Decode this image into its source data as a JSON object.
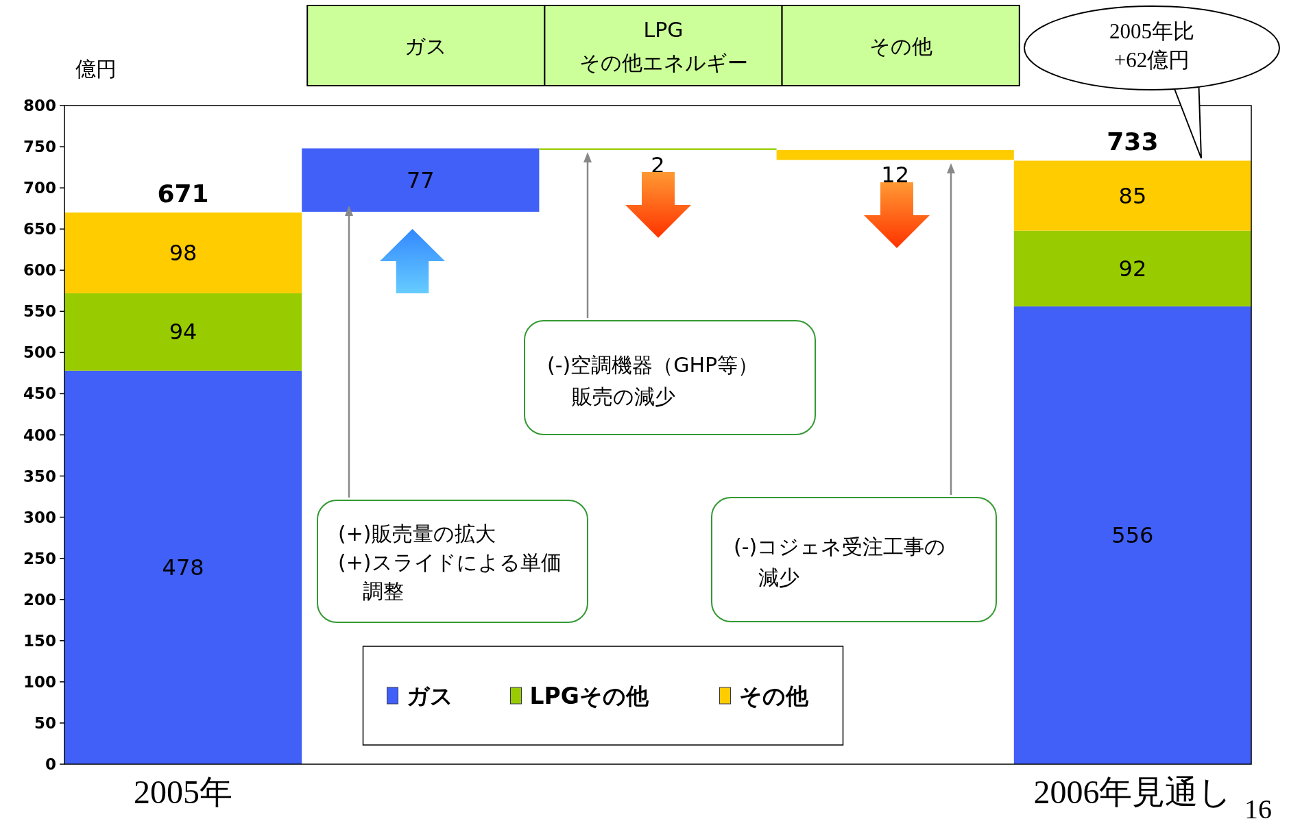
{
  "chart_data": {
    "type": "bar",
    "ylabel": "億円",
    "stacked": true,
    "legend": "bottom",
    "categories": [
      "2005年",
      "ガス",
      "LPG\nその他エネルギー",
      "その他",
      "2006年見通し"
    ],
    "series": [
      {
        "name": "ガス",
        "color": "#4060f8",
        "values": [
          478,
          77,
          null,
          null,
          556
        ],
        "base": [
          null,
          671,
          null,
          null,
          null
        ],
        "value_labels": [
          "478",
          "77",
          null,
          null,
          "556"
        ]
      },
      {
        "name": "LPGその他",
        "color": "#99cc00",
        "values": [
          94,
          null,
          -2,
          null,
          92
        ],
        "base": [
          null,
          null,
          748,
          null,
          null
        ],
        "value_labels": [
          "94",
          null,
          "2",
          null,
          "92"
        ]
      },
      {
        "name": "その他",
        "color": "#ffcc00",
        "values": [
          98,
          null,
          null,
          -12,
          85
        ],
        "base": [
          null,
          null,
          null,
          746,
          null
        ],
        "value_labels": [
          "98",
          null,
          null,
          "12",
          "85"
        ]
      }
    ],
    "totals": [
      "671",
      null,
      null,
      null,
      "733"
    ],
    "ylim": [
      0,
      800
    ],
    "yticks": [
      0,
      50,
      100,
      150,
      200,
      250,
      300,
      350,
      400,
      450,
      500,
      550,
      600,
      650,
      700,
      750,
      800
    ],
    "annotations": [
      "(+)販売量の拡大",
      "(+)スライドによる単価調整",
      "(-)空調機器（GHP等）販売の減少",
      "(-)コジェネ受注工事の減少",
      "2005年比+62億円",
      "16"
    ]
  }
}
